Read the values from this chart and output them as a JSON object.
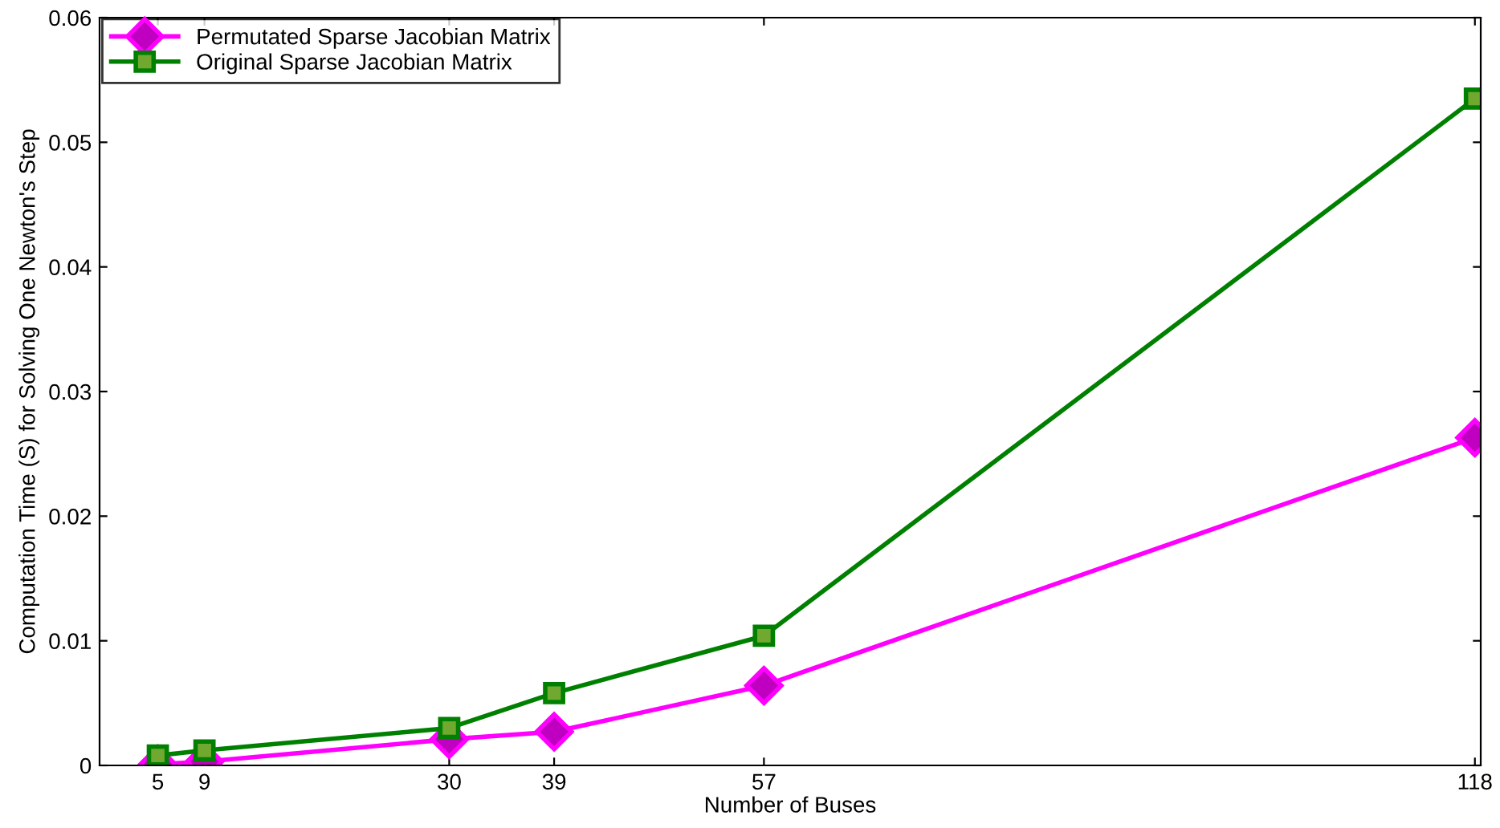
{
  "chart_data": {
    "type": "line",
    "xlabel": "Number of Buses",
    "ylabel": "Computation Time (S) for Solving One Newton's Step",
    "x": [
      5,
      9,
      30,
      39,
      57,
      118
    ],
    "series": [
      {
        "name": "Permutated Sparse Jacobian Matrix",
        "color": "#ff00ff",
        "marker": "diamond",
        "values": [
          0.0001,
          0.0003,
          0.0021,
          0.0027,
          0.0064,
          0.0263
        ]
      },
      {
        "name": "Original Sparse Jacobian Matrix",
        "color": "#008000",
        "marker": "square",
        "values": [
          0.0008,
          0.0012,
          0.003,
          0.0058,
          0.0104,
          0.0535
        ]
      }
    ],
    "xlim": [
      0,
      118.5
    ],
    "xticks": [
      5,
      9,
      30,
      39,
      57,
      118
    ],
    "ylim": [
      0,
      0.06
    ],
    "yticks": [
      0,
      0.01,
      0.02,
      0.03,
      0.04,
      0.05,
      0.06
    ],
    "grid": false,
    "legend": "top left",
    "line_style": "solid"
  }
}
